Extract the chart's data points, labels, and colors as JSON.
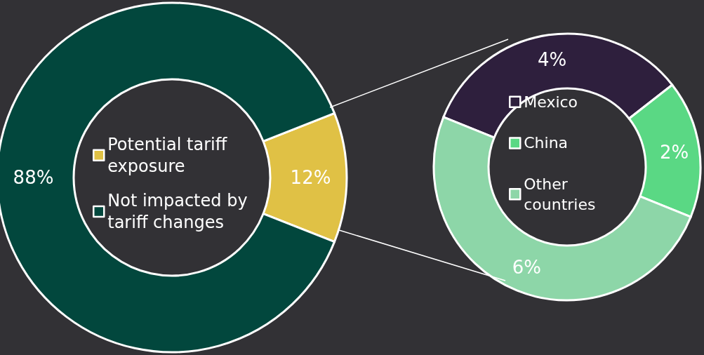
{
  "chart_data": [
    {
      "type": "donut",
      "categories": [
        "Potential tariff exposure",
        "Not impacted by tariff changes"
      ],
      "values": [
        12,
        88
      ],
      "colors": [
        "#e0c145",
        "#02473d"
      ],
      "value_labels": [
        "12%",
        "88%"
      ],
      "legend": "center"
    },
    {
      "type": "donut",
      "categories": [
        "Mexico",
        "China",
        "Other countries"
      ],
      "values": [
        4,
        2,
        6
      ],
      "colors": [
        "#2e1f3d",
        "#5ad884",
        "#8dd6a8"
      ],
      "value_labels": [
        "4%",
        "2%",
        "6%"
      ],
      "legend": "center"
    }
  ]
}
